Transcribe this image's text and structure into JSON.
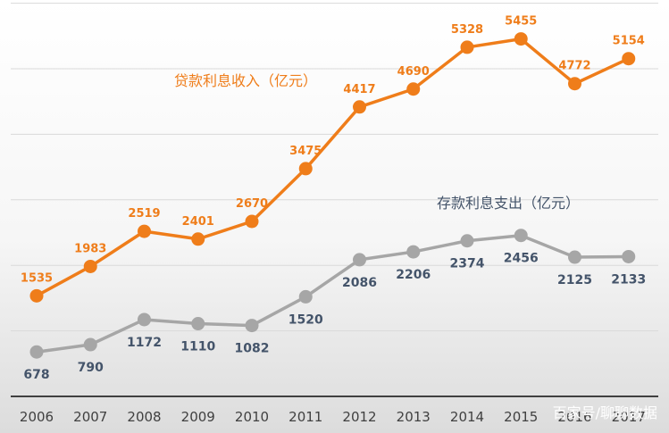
{
  "chart_data": {
    "type": "line",
    "categories": [
      "2006",
      "2007",
      "2008",
      "2009",
      "2010",
      "2011",
      "2012",
      "2013",
      "2014",
      "2015",
      "2016",
      "2017"
    ],
    "ylim": [
      0,
      6000
    ],
    "grid": true,
    "series": [
      {
        "name": "贷款利息收入（亿元）",
        "color": "#ef7d1a",
        "values": [
          1535,
          1983,
          2519,
          2401,
          2670,
          3475,
          4417,
          4690,
          5328,
          5455,
          4772,
          5154
        ]
      },
      {
        "name": "存款利息支出（亿元）",
        "color": "#a6a6a6",
        "label_color": "#44546a",
        "values": [
          678,
          790,
          1172,
          1110,
          1082,
          1520,
          2086,
          2206,
          2374,
          2456,
          2125,
          2133
        ]
      }
    ]
  },
  "watermark": "百家号/聊聊数据"
}
